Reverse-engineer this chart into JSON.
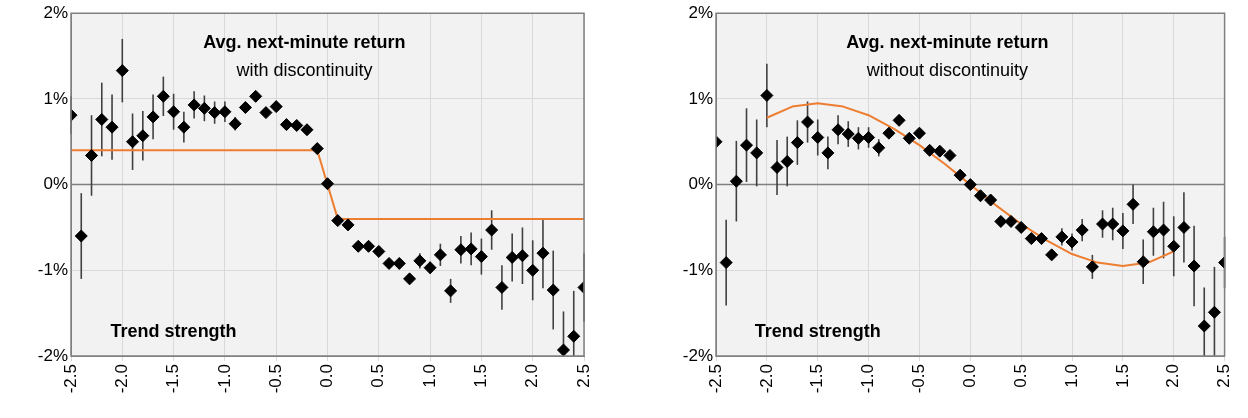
{
  "chart_data": [
    {
      "type": "scatter",
      "title": "Avg. next-minute return",
      "subtitle": "with discontinuity",
      "xlabel": "Trend strength",
      "xlim": [
        -2.5,
        2.5
      ],
      "xticks": [
        {
          "value": -2.5,
          "label": "-2.5"
        },
        {
          "value": -2,
          "label": "-2.0"
        },
        {
          "value": -1.5,
          "label": "-1.5"
        },
        {
          "value": -1,
          "label": "-1.0"
        },
        {
          "value": -0.5,
          "label": "-0.5"
        },
        {
          "value": 0,
          "label": "0.0"
        },
        {
          "value": 0.5,
          "label": "0.5"
        },
        {
          "value": 1,
          "label": "1.0"
        },
        {
          "value": 1.5,
          "label": "1.5"
        },
        {
          "value": 2,
          "label": "2.0"
        },
        {
          "value": 2.5,
          "label": "2.5"
        }
      ],
      "ylim": [
        -2,
        2
      ],
      "yticks": [
        {
          "value": -2,
          "label": "-2%"
        },
        {
          "value": -1,
          "label": "-1%"
        },
        {
          "value": 0,
          "label": "0%"
        },
        {
          "value": 1,
          "label": "1%"
        },
        {
          "value": 2,
          "label": "2%"
        }
      ],
      "grid": true,
      "legend": false,
      "ref_lines": [
        {
          "axis": "y",
          "value": 0,
          "color": "#7f7f7f"
        }
      ],
      "series": [
        {
          "type": "scatter",
          "color": "#000000",
          "marker": "diamond",
          "x": [
            -2.5,
            -2.4,
            -2.3,
            -2.2,
            -2.1,
            -2.0,
            -1.9,
            -1.8,
            -1.7,
            -1.6,
            -1.5,
            -1.4,
            -1.3,
            -1.2,
            -1.1,
            -1.0,
            -0.9,
            -0.8,
            -0.7,
            -0.6,
            -0.5,
            -0.4,
            -0.3,
            -0.2,
            -0.1,
            0.0,
            0.1,
            0.2,
            0.3,
            0.4,
            0.5,
            0.6,
            0.7,
            0.8,
            0.9,
            1.0,
            1.1,
            1.2,
            1.3,
            1.4,
            1.5,
            1.6,
            1.7,
            1.8,
            1.9,
            2.0,
            2.1,
            2.2,
            2.3,
            2.4,
            2.5
          ],
          "values": [
            0.81,
            -0.6,
            0.34,
            0.76,
            0.67,
            1.33,
            0.5,
            0.57,
            0.79,
            1.03,
            0.85,
            0.67,
            0.93,
            0.89,
            0.84,
            0.85,
            0.71,
            0.9,
            1.03,
            0.84,
            0.91,
            0.7,
            0.69,
            0.64,
            0.42,
            0.01,
            -0.42,
            -0.47,
            -0.72,
            -0.72,
            -0.78,
            -0.92,
            -0.92,
            -1.1,
            -0.89,
            -0.97,
            -0.82,
            -1.24,
            -0.76,
            -0.75,
            -0.84,
            -0.53,
            -1.2,
            -0.85,
            -0.83,
            -1.0,
            -0.8,
            -1.23,
            -1.93,
            -1.77,
            -1.2
          ],
          "errors": [
            0.22,
            0.5,
            0.47,
            0.43,
            0.38,
            0.37,
            0.33,
            0.29,
            0.26,
            0.23,
            0.21,
            0.18,
            0.16,
            0.15,
            0.13,
            0.12,
            0.08,
            null,
            null,
            null,
            null,
            null,
            null,
            null,
            null,
            null,
            null,
            null,
            null,
            null,
            null,
            null,
            null,
            null,
            0.09,
            0.07,
            0.13,
            0.14,
            0.16,
            0.19,
            0.21,
            0.23,
            0.26,
            0.28,
            0.33,
            0.35,
            0.41,
            0.46,
            [
              -2,
              -1.48
            ],
            [
              -2,
              -1.24
            ],
            [
              -1.6,
              -0.8
            ]
          ]
        },
        {
          "type": "line",
          "color": "#ed7d31",
          "marker": "none",
          "x": [
            -2.5,
            -0.1,
            0.1,
            2.5
          ],
          "values": [
            0.4,
            0.4,
            -0.4,
            -0.4
          ]
        }
      ]
    },
    {
      "type": "scatter",
      "title": "Avg. next-minute return",
      "subtitle": "without discontinuity",
      "xlabel": "Trend strength",
      "xlim": [
        -2.5,
        2.5
      ],
      "xticks": [
        {
          "value": -2.5,
          "label": "-2.5"
        },
        {
          "value": -2,
          "label": "-2.0"
        },
        {
          "value": -1.5,
          "label": "-1.5"
        },
        {
          "value": -1,
          "label": "-1.0"
        },
        {
          "value": -0.5,
          "label": "-0.5"
        },
        {
          "value": 0,
          "label": "0.0"
        },
        {
          "value": 0.5,
          "label": "0.5"
        },
        {
          "value": 1,
          "label": "1.0"
        },
        {
          "value": 1.5,
          "label": "1.5"
        },
        {
          "value": 2,
          "label": "2.0"
        },
        {
          "value": 2.5,
          "label": "2.5"
        }
      ],
      "ylim": [
        -2,
        2
      ],
      "yticks": [
        {
          "value": -2,
          "label": "-2%"
        },
        {
          "value": -1,
          "label": "-1%"
        },
        {
          "value": 0,
          "label": "0%"
        },
        {
          "value": 1,
          "label": "1%"
        },
        {
          "value": 2,
          "label": "2%"
        }
      ],
      "grid": true,
      "legend": false,
      "ref_lines": [
        {
          "axis": "y",
          "value": 0,
          "color": "#7f7f7f"
        }
      ],
      "series": [
        {
          "type": "scatter",
          "color": "#000000",
          "marker": "diamond",
          "x": [
            -2.5,
            -2.4,
            -2.3,
            -2.2,
            -2.1,
            -2.0,
            -1.9,
            -1.8,
            -1.7,
            -1.6,
            -1.5,
            -1.4,
            -1.3,
            -1.2,
            -1.1,
            -1.0,
            -0.9,
            -0.8,
            -0.7,
            -0.6,
            -0.5,
            -0.4,
            -0.3,
            -0.2,
            -0.1,
            0.0,
            0.1,
            0.2,
            0.3,
            0.4,
            0.5,
            0.6,
            0.7,
            0.8,
            0.9,
            1.0,
            1.1,
            1.2,
            1.3,
            1.4,
            1.5,
            1.6,
            1.7,
            1.8,
            1.9,
            2.0,
            2.1,
            2.2,
            2.3,
            2.4,
            2.5
          ],
          "values": [
            0.5,
            -0.91,
            0.04,
            0.46,
            0.37,
            1.04,
            0.2,
            0.27,
            0.49,
            0.73,
            0.55,
            0.37,
            0.64,
            0.59,
            0.54,
            0.55,
            0.43,
            0.6,
            0.75,
            0.54,
            0.6,
            0.4,
            0.39,
            0.34,
            0.11,
            0.0,
            -0.13,
            -0.18,
            -0.43,
            -0.43,
            -0.5,
            -0.63,
            -0.63,
            -0.82,
            -0.61,
            -0.67,
            -0.53,
            -0.96,
            -0.46,
            -0.46,
            -0.54,
            -0.23,
            -0.9,
            -0.55,
            -0.53,
            -0.72,
            -0.5,
            -0.95,
            -1.65,
            -1.49,
            -0.91
          ],
          "errors": [
            null,
            0.5,
            0.47,
            0.43,
            0.39,
            0.37,
            0.32,
            0.29,
            0.26,
            0.24,
            0.21,
            0.19,
            0.17,
            0.15,
            0.13,
            0.12,
            0.1,
            null,
            null,
            null,
            null,
            null,
            null,
            null,
            null,
            null,
            null,
            null,
            null,
            null,
            null,
            null,
            null,
            null,
            0.1,
            0.1,
            0.13,
            0.14,
            0.16,
            0.19,
            0.21,
            0.23,
            0.26,
            0.28,
            0.33,
            0.35,
            0.41,
            0.47,
            [
              -2,
              -1.2
            ],
            [
              -2,
              -0.96
            ],
            0.3
          ]
        },
        {
          "type": "line",
          "color": "#ed7d31",
          "marker": "none",
          "x": [
            -2.0,
            -1.75,
            -1.5,
            -1.25,
            -1.0,
            -0.75,
            -0.5,
            -0.25,
            0.0,
            0.25,
            0.5,
            0.75,
            1.0,
            1.25,
            1.5,
            1.75,
            2.0
          ],
          "values": [
            0.78,
            0.91,
            0.95,
            0.91,
            0.81,
            0.65,
            0.46,
            0.24,
            0.0,
            -0.24,
            -0.46,
            -0.65,
            -0.81,
            -0.91,
            -0.95,
            -0.91,
            -0.78
          ]
        }
      ]
    }
  ]
}
